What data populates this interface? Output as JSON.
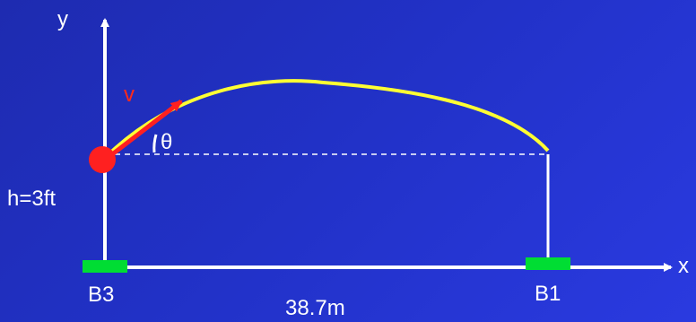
{
  "diagram": {
    "labels": {
      "y_axis": "y",
      "x_axis": "x",
      "velocity": "v",
      "angle": "θ",
      "height": "h=3ft",
      "left_base": "B3",
      "right_base": "B1",
      "distance": "38.7m"
    },
    "colors": {
      "background": "#2131c6",
      "axis": "#ffffff",
      "trajectory": "#ffff33",
      "ball": "#ff2020",
      "velocity_arrow": "#ff2020",
      "base": "#00dd33",
      "text": "#ffffff"
    }
  }
}
